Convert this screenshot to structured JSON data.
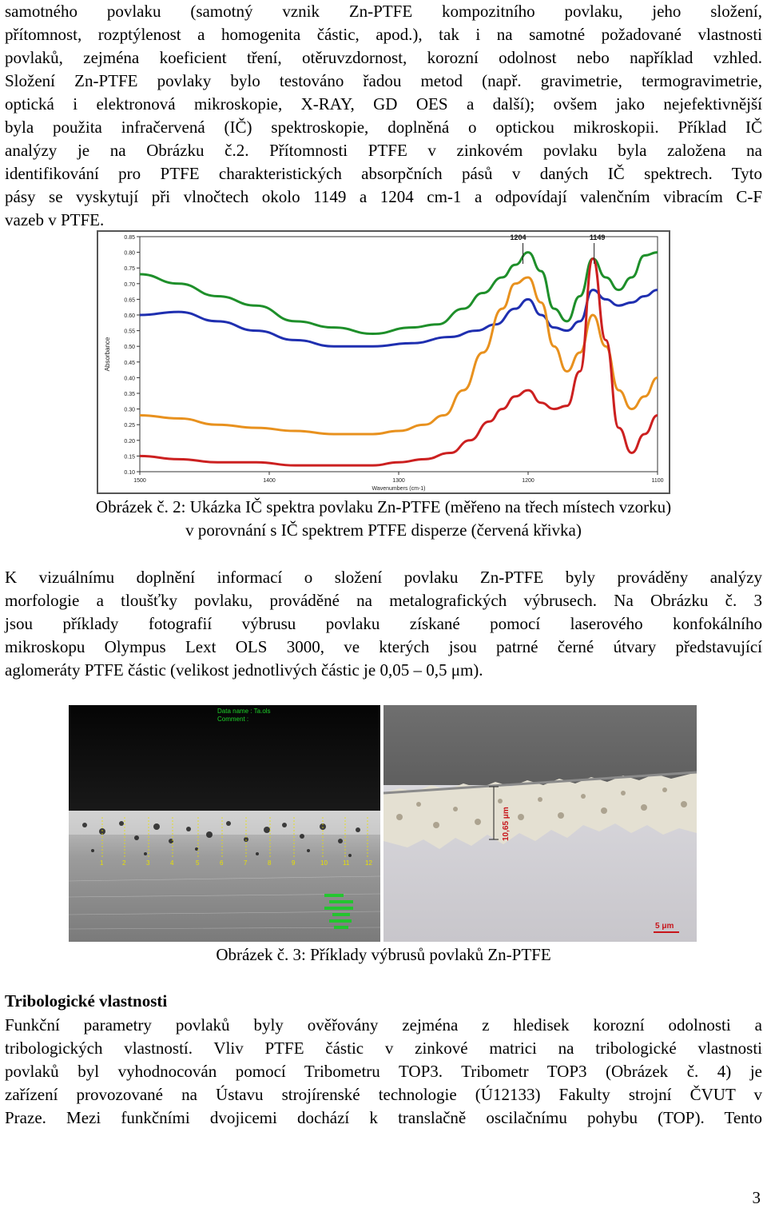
{
  "paragraph1": {
    "lines": [
      "samotného povlaku (samotný vznik Zn-PTFE kompozitního povlaku, jeho složení,",
      "přítomnost, rozptýlenost a homogenita částic, apod.), tak i na samotné požadované vlastnosti",
      "povlaků, zejména koeficient tření, otěruvzdornost, korozní odolnost nebo například vzhled.",
      "Složení Zn-PTFE povlaky bylo testováno řadou metod (např. gravimetrie, termogravimetrie,",
      "optická i elektronová mikroskopie, X-RAY, GD OES a další); ovšem jako nejefektivnější",
      "byla použita infračervená (IČ) spektroskopie, doplněná o optickou mikroskopii. Příklad IČ",
      "analýzy je na Obrázku č.2. Přítomnosti PTFE v zinkovém povlaku byla založena na",
      "identifikování pro PTFE charakteristických absorpčních pásů v daných IČ spektrech. Tyto",
      "pásy se vyskytují při vlnočtech okolo 1149 a 1204 cm-1 a odpovídají valenčním vibracím C-F",
      "vazeb v PTFE."
    ]
  },
  "chart_data": {
    "type": "line",
    "xlabel": "Wavenumbers (cm-1)",
    "ylabel": "Absorbance",
    "x_ticks": [
      1500,
      1400,
      1300,
      1200,
      1100
    ],
    "y_ticks": [
      0.1,
      0.15,
      0.2,
      0.25,
      0.3,
      0.35,
      0.4,
      0.45,
      0.5,
      0.55,
      0.6,
      0.65,
      0.7,
      0.75,
      0.8,
      0.85
    ],
    "xlim": [
      1500,
      1100
    ],
    "ylim": [
      0.1,
      0.85
    ],
    "annotations": [
      "1204",
      "1149"
    ],
    "series": [
      {
        "color": "#1f2fb0",
        "x": [
          1500,
          1470,
          1440,
          1410,
          1380,
          1350,
          1320,
          1290,
          1260,
          1240,
          1225,
          1210,
          1200,
          1190,
          1180,
          1170,
          1160,
          1150,
          1140,
          1130,
          1120,
          1110,
          1100
        ],
        "y": [
          0.6,
          0.61,
          0.58,
          0.55,
          0.52,
          0.5,
          0.5,
          0.51,
          0.53,
          0.55,
          0.57,
          0.62,
          0.65,
          0.6,
          0.56,
          0.55,
          0.58,
          0.68,
          0.65,
          0.63,
          0.64,
          0.66,
          0.68
        ]
      },
      {
        "color": "#1e8f2a",
        "x": [
          1500,
          1470,
          1440,
          1410,
          1380,
          1350,
          1320,
          1290,
          1270,
          1250,
          1235,
          1220,
          1210,
          1200,
          1190,
          1180,
          1170,
          1160,
          1150,
          1140,
          1130,
          1120,
          1110,
          1100
        ],
        "y": [
          0.73,
          0.7,
          0.66,
          0.63,
          0.58,
          0.56,
          0.54,
          0.56,
          0.57,
          0.62,
          0.67,
          0.72,
          0.76,
          0.8,
          0.74,
          0.62,
          0.58,
          0.66,
          0.78,
          0.72,
          0.68,
          0.72,
          0.79,
          0.8
        ]
      },
      {
        "color": "#e8911e",
        "x": [
          1500,
          1470,
          1440,
          1410,
          1380,
          1350,
          1320,
          1300,
          1280,
          1265,
          1250,
          1235,
          1220,
          1210,
          1200,
          1190,
          1180,
          1170,
          1160,
          1150,
          1140,
          1130,
          1120,
          1110,
          1100
        ],
        "y": [
          0.28,
          0.27,
          0.25,
          0.24,
          0.23,
          0.22,
          0.22,
          0.23,
          0.25,
          0.28,
          0.36,
          0.48,
          0.62,
          0.7,
          0.72,
          0.64,
          0.5,
          0.42,
          0.48,
          0.6,
          0.5,
          0.36,
          0.3,
          0.34,
          0.4
        ]
      },
      {
        "color": "#cc2020",
        "x": [
          1500,
          1470,
          1440,
          1410,
          1380,
          1350,
          1320,
          1300,
          1280,
          1260,
          1245,
          1230,
          1220,
          1210,
          1200,
          1190,
          1180,
          1170,
          1160,
          1150,
          1140,
          1130,
          1120,
          1110,
          1100
        ],
        "y": [
          0.15,
          0.14,
          0.13,
          0.13,
          0.12,
          0.12,
          0.12,
          0.13,
          0.14,
          0.16,
          0.2,
          0.26,
          0.3,
          0.34,
          0.36,
          0.32,
          0.3,
          0.31,
          0.42,
          0.78,
          0.52,
          0.24,
          0.16,
          0.22,
          0.28
        ]
      }
    ]
  },
  "figure2": {
    "caption_line1": "Obrázek č. 2: Ukázka IČ spektra povlaku Zn-PTFE (měřeno na třech místech vzorku)",
    "caption_line2": "v porovnání s IČ spektrem PTFE disperze (červená křivka)"
  },
  "paragraph2": {
    "lines": [
      "K vizuálnímu doplnění informací o složení povlaku Zn-PTFE byly prováděny analýzy",
      "morfologie a tloušťky povlaku, prováděné na metalografických výbrusech. Na Obrázku č. 3",
      "jsou příklady fotografií výbrusu povlaku získané pomocí laserového konfokálního",
      "mikroskopu Olympus Lext OLS 3000, ve kterých jsou patrné černé útvary představující",
      "aglomeráty PTFE částic (velikost jednotlivých částic je 0,05 – 0,5 μm)."
    ]
  },
  "figure3": {
    "left_photo": {
      "overlay_line1": "Data name : Ta.ols",
      "overlay_line2": "Comment :",
      "markers": [
        "1",
        "2",
        "3",
        "4",
        "5",
        "6",
        "7",
        "8",
        "9",
        "10",
        "11",
        "12"
      ]
    },
    "right_photo": {
      "thickness_label": "10,65 μm",
      "scale_label": "5 μm"
    },
    "caption": "Obrázek č. 3: Příklady výbrusů povlaků Zn-PTFE"
  },
  "section": {
    "heading": "Tribologické vlastnosti",
    "lines": [
      "Funkční parametry povlaků byly ověřovány zejména z hledisek korozní odolnosti a",
      "tribologických vlastností. Vliv PTFE částic v zinkové matrici na tribologické vlastnosti",
      "povlaků byl vyhodnocován pomocí Tribometru TOP3. Tribometr TOP3 (Obrázek č. 4) je",
      "zařízení provozované na Ústavu strojírenské technologie (Ú12133) Fakulty strojní ČVUT v",
      "Praze. Mezi funkčními dvojicemi dochází k translačně oscilačnímu pohybu (TOP). Tento"
    ]
  },
  "page_number": "3"
}
